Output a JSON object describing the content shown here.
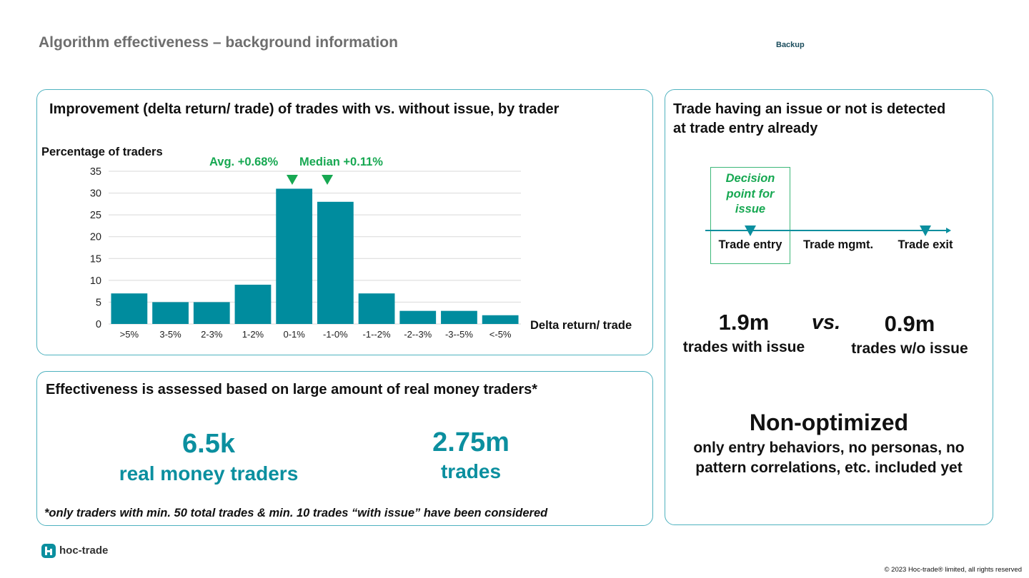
{
  "header": {
    "title": "Algorithm effectiveness – background information",
    "tag": "Backup"
  },
  "chart_panel": {
    "title": "Improvement (delta return/ trade) of trades with vs. without issue, by trader",
    "avg_label": "Avg. +0.68%",
    "median_label": "Median +0.11%"
  },
  "chart_data": {
    "type": "bar",
    "ylabel": "Percentage of traders",
    "xlabel": "Delta return/ trade",
    "categories": [
      ">5%",
      "3-5%",
      "2-3%",
      "1-2%",
      "0-1%",
      "-1-0%",
      "-1--2%",
      "-2--3%",
      "-3--5%",
      "<-5%"
    ],
    "values": [
      7,
      5,
      5,
      9,
      31,
      28,
      7,
      3,
      3,
      2
    ],
    "yticks": [
      0,
      5,
      10,
      15,
      20,
      25,
      30,
      35
    ],
    "ylim": [
      0,
      35
    ],
    "grid": true,
    "bar_color": "#008c9e",
    "marker_color": "#17a852"
  },
  "timeline_panel": {
    "title_line1": "Trade having an issue or not is detected",
    "title_line2": "at trade entry already",
    "decision_line1": "Decision",
    "decision_line2": "point for",
    "decision_line3": "issue",
    "stage_entry": "Trade entry",
    "stage_mgmt": "Trade mgmt.",
    "stage_exit": "Trade exit",
    "with_issue_value": "1.9m",
    "with_issue_label": "trades with issue",
    "vs_label": "vs.",
    "without_issue_value": "0.9m",
    "without_issue_label": "trades w/o issue",
    "nonopt_title": "Non-optimized",
    "nonopt_line1": "only entry behaviors, no personas, no",
    "nonopt_line2": "pattern correlations, etc. included yet"
  },
  "effectiveness_panel": {
    "title": "Effectiveness is assessed based on large amount of real money traders*",
    "traders_value": "6.5k",
    "traders_label": "real money traders",
    "trades_value": "2.75m",
    "trades_label": "trades",
    "footnote": "*only traders with min. 50 total trades & min. 10 trades “with issue” have been considered"
  },
  "footer": {
    "logo_text": "hoc-trade",
    "copyright": "© 2023 Hoc-trade® limited, all rights reserved"
  },
  "colors": {
    "teal": "#0b8f9f",
    "green": "#17a852",
    "panel_border": "#4fb2bf",
    "title_gray": "#6e6e6e"
  }
}
